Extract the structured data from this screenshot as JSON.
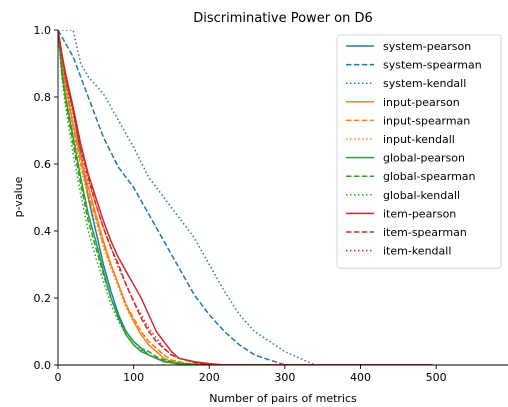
{
  "chart_data": {
    "type": "line",
    "title": "Discriminative Power on D6",
    "xlabel": "Number of pairs of metrics",
    "ylabel": "p-value",
    "xlim": [
      0,
      595
    ],
    "ylim": [
      0,
      1.0
    ],
    "xticks": [
      0,
      100,
      200,
      300,
      400,
      500
    ],
    "yticks": [
      0.0,
      0.2,
      0.4,
      0.6,
      0.8,
      1.0
    ],
    "xtick_labels": [
      "0",
      "100",
      "200",
      "300",
      "400",
      "500"
    ],
    "ytick_labels": [
      "0.0",
      "0.2",
      "0.4",
      "0.6",
      "0.8",
      "1.0"
    ],
    "grid": false,
    "legend_position": "top-right",
    "series": [
      {
        "name": "system-pearson",
        "color": "#1f77b4",
        "dash": "solid",
        "x": [
          0,
          5,
          10,
          20,
          30,
          40,
          50,
          60,
          70,
          80,
          90,
          100,
          110,
          120,
          130,
          140,
          160,
          180,
          200,
          495
        ],
        "y": [
          1.0,
          0.93,
          0.86,
          0.76,
          0.63,
          0.5,
          0.4,
          0.3,
          0.22,
          0.15,
          0.1,
          0.07,
          0.05,
          0.03,
          0.02,
          0.01,
          0.005,
          0.002,
          0.0,
          0.0
        ]
      },
      {
        "name": "system-spearman",
        "color": "#1f77b4",
        "dash": "dashed",
        "x": [
          0,
          20,
          40,
          60,
          80,
          100,
          120,
          140,
          160,
          180,
          200,
          220,
          240,
          260,
          280,
          300,
          495
        ],
        "y": [
          1.0,
          0.92,
          0.8,
          0.68,
          0.59,
          0.53,
          0.45,
          0.37,
          0.29,
          0.21,
          0.15,
          0.1,
          0.06,
          0.03,
          0.015,
          0.0,
          0.0
        ]
      },
      {
        "name": "system-kendall",
        "color": "#1f77b4",
        "dash": "dotted",
        "x": [
          0,
          20,
          30,
          40,
          60,
          80,
          100,
          120,
          140,
          160,
          180,
          200,
          220,
          240,
          260,
          280,
          300,
          320,
          340,
          495
        ],
        "y": [
          1.0,
          1.0,
          0.9,
          0.86,
          0.81,
          0.73,
          0.65,
          0.56,
          0.5,
          0.44,
          0.38,
          0.3,
          0.22,
          0.15,
          0.1,
          0.07,
          0.04,
          0.02,
          0.0,
          0.0
        ]
      },
      {
        "name": "input-pearson",
        "color": "#ff7f0e",
        "dash": "solid",
        "x": [
          0,
          5,
          10,
          20,
          30,
          40,
          50,
          60,
          70,
          80,
          90,
          100,
          110,
          120,
          130,
          140,
          150,
          170,
          200,
          495
        ],
        "y": [
          1.0,
          0.9,
          0.84,
          0.72,
          0.62,
          0.53,
          0.45,
          0.37,
          0.3,
          0.24,
          0.18,
          0.13,
          0.09,
          0.06,
          0.04,
          0.02,
          0.01,
          0.003,
          0.0,
          0.0
        ]
      },
      {
        "name": "input-spearman",
        "color": "#ff7f0e",
        "dash": "dashed",
        "x": [
          0,
          5,
          10,
          20,
          30,
          40,
          50,
          60,
          70,
          80,
          90,
          100,
          110,
          120,
          130,
          140,
          150,
          170,
          200,
          495
        ],
        "y": [
          1.0,
          0.9,
          0.83,
          0.71,
          0.6,
          0.51,
          0.44,
          0.36,
          0.3,
          0.24,
          0.18,
          0.14,
          0.1,
          0.07,
          0.05,
          0.03,
          0.015,
          0.005,
          0.0,
          0.0
        ]
      },
      {
        "name": "input-kendall",
        "color": "#ff7f0e",
        "dash": "dotted",
        "x": [
          0,
          5,
          10,
          20,
          30,
          40,
          50,
          60,
          70,
          80,
          90,
          100,
          110,
          120,
          130,
          140,
          150,
          170,
          200,
          495
        ],
        "y": [
          1.0,
          0.9,
          0.82,
          0.7,
          0.59,
          0.5,
          0.43,
          0.35,
          0.29,
          0.23,
          0.17,
          0.13,
          0.1,
          0.07,
          0.05,
          0.03,
          0.015,
          0.005,
          0.0,
          0.0
        ]
      },
      {
        "name": "global-pearson",
        "color": "#2ca02c",
        "dash": "solid",
        "x": [
          0,
          5,
          10,
          20,
          30,
          40,
          50,
          60,
          70,
          80,
          90,
          100,
          110,
          120,
          130,
          140,
          160,
          200,
          495
        ],
        "y": [
          1.0,
          0.88,
          0.8,
          0.68,
          0.56,
          0.45,
          0.37,
          0.28,
          0.2,
          0.14,
          0.09,
          0.06,
          0.04,
          0.03,
          0.02,
          0.01,
          0.003,
          0.0,
          0.0
        ]
      },
      {
        "name": "global-spearman",
        "color": "#2ca02c",
        "dash": "dashed",
        "x": [
          0,
          5,
          10,
          20,
          30,
          40,
          50,
          60,
          70,
          80,
          90,
          100,
          110,
          120,
          130,
          140,
          160,
          200,
          495
        ],
        "y": [
          1.0,
          0.87,
          0.79,
          0.66,
          0.54,
          0.43,
          0.35,
          0.27,
          0.2,
          0.14,
          0.1,
          0.07,
          0.05,
          0.04,
          0.025,
          0.015,
          0.005,
          0.0,
          0.0
        ]
      },
      {
        "name": "global-kendall",
        "color": "#2ca02c",
        "dash": "dotted",
        "x": [
          0,
          5,
          10,
          20,
          30,
          40,
          50,
          60,
          70,
          80,
          90,
          100,
          110,
          120,
          130,
          140,
          160,
          200,
          495
        ],
        "y": [
          1.0,
          0.86,
          0.77,
          0.63,
          0.51,
          0.4,
          0.32,
          0.25,
          0.18,
          0.13,
          0.09,
          0.06,
          0.045,
          0.03,
          0.02,
          0.01,
          0.004,
          0.0,
          0.0
        ]
      },
      {
        "name": "item-pearson",
        "color": "#d62728",
        "dash": "solid",
        "x": [
          0,
          5,
          10,
          20,
          30,
          40,
          50,
          60,
          70,
          80,
          90,
          100,
          110,
          120,
          130,
          140,
          150,
          160,
          180,
          200,
          220,
          495
        ],
        "y": [
          1.0,
          0.93,
          0.87,
          0.77,
          0.66,
          0.57,
          0.5,
          0.43,
          0.37,
          0.32,
          0.28,
          0.24,
          0.2,
          0.15,
          0.1,
          0.07,
          0.04,
          0.02,
          0.01,
          0.004,
          0.0,
          0.0
        ]
      },
      {
        "name": "item-spearman",
        "color": "#d62728",
        "dash": "dashed",
        "x": [
          0,
          5,
          10,
          20,
          30,
          40,
          50,
          60,
          70,
          80,
          90,
          100,
          110,
          120,
          130,
          140,
          150,
          160,
          180,
          200,
          495
        ],
        "y": [
          1.0,
          0.92,
          0.86,
          0.76,
          0.65,
          0.56,
          0.48,
          0.41,
          0.35,
          0.3,
          0.24,
          0.19,
          0.14,
          0.1,
          0.07,
          0.05,
          0.03,
          0.02,
          0.008,
          0.0,
          0.0
        ]
      },
      {
        "name": "item-kendall",
        "color": "#d62728",
        "dash": "dotted",
        "x": [
          0,
          5,
          10,
          20,
          30,
          40,
          50,
          60,
          70,
          80,
          90,
          100,
          110,
          120,
          130,
          140,
          150,
          160,
          180,
          200,
          495
        ],
        "y": [
          1.0,
          0.92,
          0.85,
          0.75,
          0.64,
          0.55,
          0.48,
          0.41,
          0.35,
          0.29,
          0.24,
          0.19,
          0.15,
          0.11,
          0.08,
          0.05,
          0.03,
          0.02,
          0.008,
          0.0,
          0.0
        ]
      }
    ]
  }
}
